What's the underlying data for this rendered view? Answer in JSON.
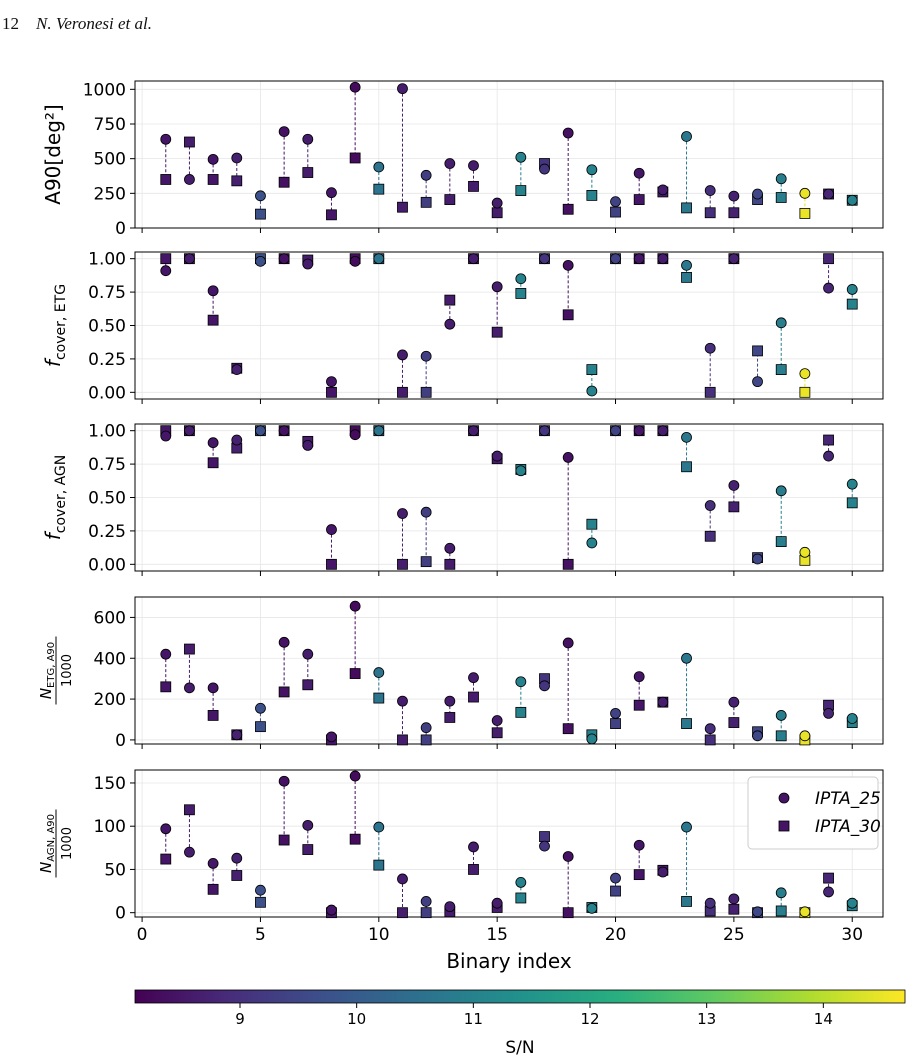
{
  "header": {
    "page_number": "12",
    "authors": "N. Veronesi et al."
  },
  "chart_data": {
    "type": "scatter",
    "x": [
      1,
      2,
      3,
      4,
      5,
      6,
      7,
      8,
      9,
      10,
      11,
      12,
      13,
      14,
      15,
      16,
      17,
      18,
      19,
      20,
      21,
      22,
      23,
      24,
      25,
      26,
      27,
      28,
      29,
      30
    ],
    "sn": [
      8.5,
      8.6,
      8.5,
      8.7,
      9.7,
      8.4,
      8.6,
      8.5,
      8.3,
      10.6,
      8.6,
      9.3,
      8.6,
      8.6,
      8.6,
      11.0,
      9.1,
      8.4,
      11.0,
      9.4,
      8.5,
      8.6,
      10.7,
      9.0,
      8.7,
      9.5,
      10.9,
      14.5,
      8.8,
      11.0
    ],
    "xlabel": "Binary index",
    "xlim": [
      -0.3,
      31.3
    ],
    "xticks": [
      0,
      5,
      10,
      15,
      20,
      25,
      30
    ],
    "legend": {
      "placement": "right",
      "entries": [
        "IPTA_25",
        "IPTA_30"
      ]
    },
    "panels": [
      {
        "ylabel": "A90[deg²]",
        "ylim": [
          0,
          1060
        ],
        "yticks": [
          0,
          250,
          500,
          750,
          1000
        ],
        "ytick_labels": [
          "0",
          "250",
          "500",
          "750",
          "1000"
        ],
        "series": [
          {
            "name": "IPTA_25",
            "marker": "circle",
            "values": [
              640,
              350,
              495,
              505,
              232,
              695,
              640,
              255,
              1015,
              440,
              1005,
              380,
              465,
              450,
              180,
              510,
              425,
              685,
              420,
              190,
              395,
              275,
              660,
              270,
              230,
              245,
              355,
              250,
              245,
              200
            ]
          },
          {
            "name": "IPTA_30",
            "marker": "square",
            "values": [
              350,
              620,
              350,
              340,
              100,
              330,
              400,
              95,
              505,
              280,
              150,
              185,
              205,
              300,
              110,
              270,
              465,
              135,
              235,
              115,
              205,
              260,
              145,
              110,
              110,
              205,
              220,
              105,
              245,
              200
            ]
          }
        ]
      },
      {
        "ylabel": "f_cover, ETG",
        "ylim": [
          -0.05,
          1.05
        ],
        "yticks": [
          0,
          0.25,
          0.5,
          0.75,
          1
        ],
        "ytick_labels": [
          "0.00",
          "0.25",
          "0.50",
          "0.75",
          "1.00"
        ],
        "series": [
          {
            "name": "IPTA_25",
            "marker": "circle",
            "values": [
              0.91,
              1.0,
              0.76,
              0.17,
              0.98,
              1.0,
              0.96,
              0.08,
              0.98,
              1.0,
              0.28,
              0.27,
              0.51,
              1.0,
              0.79,
              0.85,
              1.0,
              0.95,
              0.01,
              1.0,
              1.0,
              1.0,
              0.95,
              0.33,
              1.0,
              0.08,
              0.52,
              0.14,
              0.78,
              0.77
            ]
          },
          {
            "name": "IPTA_30",
            "marker": "square",
            "values": [
              1.0,
              1.0,
              0.54,
              0.18,
              1.0,
              1.0,
              0.99,
              0.0,
              1.0,
              1.0,
              0.0,
              0.0,
              0.69,
              1.0,
              0.45,
              0.74,
              1.0,
              0.58,
              0.17,
              1.0,
              1.0,
              1.0,
              0.86,
              0.0,
              1.0,
              0.31,
              0.17,
              0.0,
              1.0,
              0.66
            ]
          }
        ]
      },
      {
        "ylabel": "f_cover, AGN",
        "ylim": [
          -0.05,
          1.05
        ],
        "yticks": [
          0,
          0.25,
          0.5,
          0.75,
          1
        ],
        "ytick_labels": [
          "0.00",
          "0.25",
          "0.50",
          "0.75",
          "1.00"
        ],
        "series": [
          {
            "name": "IPTA_25",
            "marker": "circle",
            "values": [
              0.96,
              1.0,
              0.91,
              0.93,
              1.0,
              1.0,
              0.89,
              0.26,
              0.97,
              1.0,
              0.38,
              0.39,
              0.12,
              1.0,
              0.81,
              0.7,
              1.0,
              0.8,
              0.16,
              1.0,
              1.0,
              1.0,
              0.95,
              0.44,
              0.59,
              0.04,
              0.55,
              0.09,
              0.81,
              0.6
            ]
          },
          {
            "name": "IPTA_30",
            "marker": "square",
            "values": [
              1.0,
              1.0,
              0.76,
              0.87,
              1.0,
              1.0,
              0.92,
              0.0,
              1.0,
              1.0,
              0.0,
              0.02,
              0.0,
              1.0,
              0.79,
              0.71,
              1.0,
              0.0,
              0.3,
              1.0,
              1.0,
              1.0,
              0.73,
              0.21,
              0.43,
              0.05,
              0.17,
              0.03,
              0.93,
              0.46
            ]
          }
        ]
      },
      {
        "ylabel": "N_ETG, A90 / 1000",
        "ylim": [
          -20,
          700
        ],
        "yticks": [
          0,
          200,
          400,
          600
        ],
        "ytick_labels": [
          "0",
          "200",
          "400",
          "600"
        ],
        "series": [
          {
            "name": "IPTA_25",
            "marker": "circle",
            "values": [
              420,
              255,
              255,
              25,
              155,
              478,
              420,
              15,
              655,
              330,
              190,
              60,
              190,
              305,
              95,
              285,
              265,
              475,
              5,
              130,
              310,
              185,
              400,
              55,
              185,
              20,
              120,
              20,
              130,
              105
            ]
          },
          {
            "name": "IPTA_30",
            "marker": "square",
            "values": [
              260,
              445,
              120,
              25,
              65,
              235,
              270,
              0,
              325,
              205,
              0,
              0,
              110,
              210,
              35,
              135,
              300,
              55,
              25,
              80,
              170,
              185,
              80,
              0,
              85,
              40,
              20,
              0,
              170,
              85
            ]
          }
        ]
      },
      {
        "ylabel": "N_AGN, A90 / 1000",
        "ylim": [
          -5,
          165
        ],
        "yticks": [
          0,
          50,
          100,
          150
        ],
        "ytick_labels": [
          "0",
          "50",
          "100",
          "150"
        ],
        "series": [
          {
            "name": "IPTA_25",
            "marker": "circle",
            "values": [
              97,
              70,
              57,
              63,
              26,
              152,
              101,
              3,
              158,
              99,
              39,
              13,
              7,
              76,
              11,
              35,
              77,
              65,
              5,
              40,
              78,
              47,
              99,
              11,
              16,
              1,
              23,
              1,
              24,
              11
            ]
          },
          {
            "name": "IPTA_30",
            "marker": "square",
            "values": [
              62,
              119,
              27,
              43,
              12,
              84,
              73,
              0,
              85,
              55,
              0,
              0,
              1,
              50,
              6,
              17,
              88,
              0,
              6,
              25,
              44,
              49,
              13,
              2,
              4,
              0,
              2,
              0,
              40,
              8
            ]
          }
        ]
      }
    ],
    "colorbar": {
      "label": "S/N",
      "range": [
        8.1,
        14.7
      ],
      "ticks": [
        9,
        10,
        11,
        12,
        13,
        14
      ],
      "tick_labels": [
        "9",
        "10",
        "11",
        "12",
        "13",
        "14"
      ],
      "colormap": "viridis"
    }
  }
}
